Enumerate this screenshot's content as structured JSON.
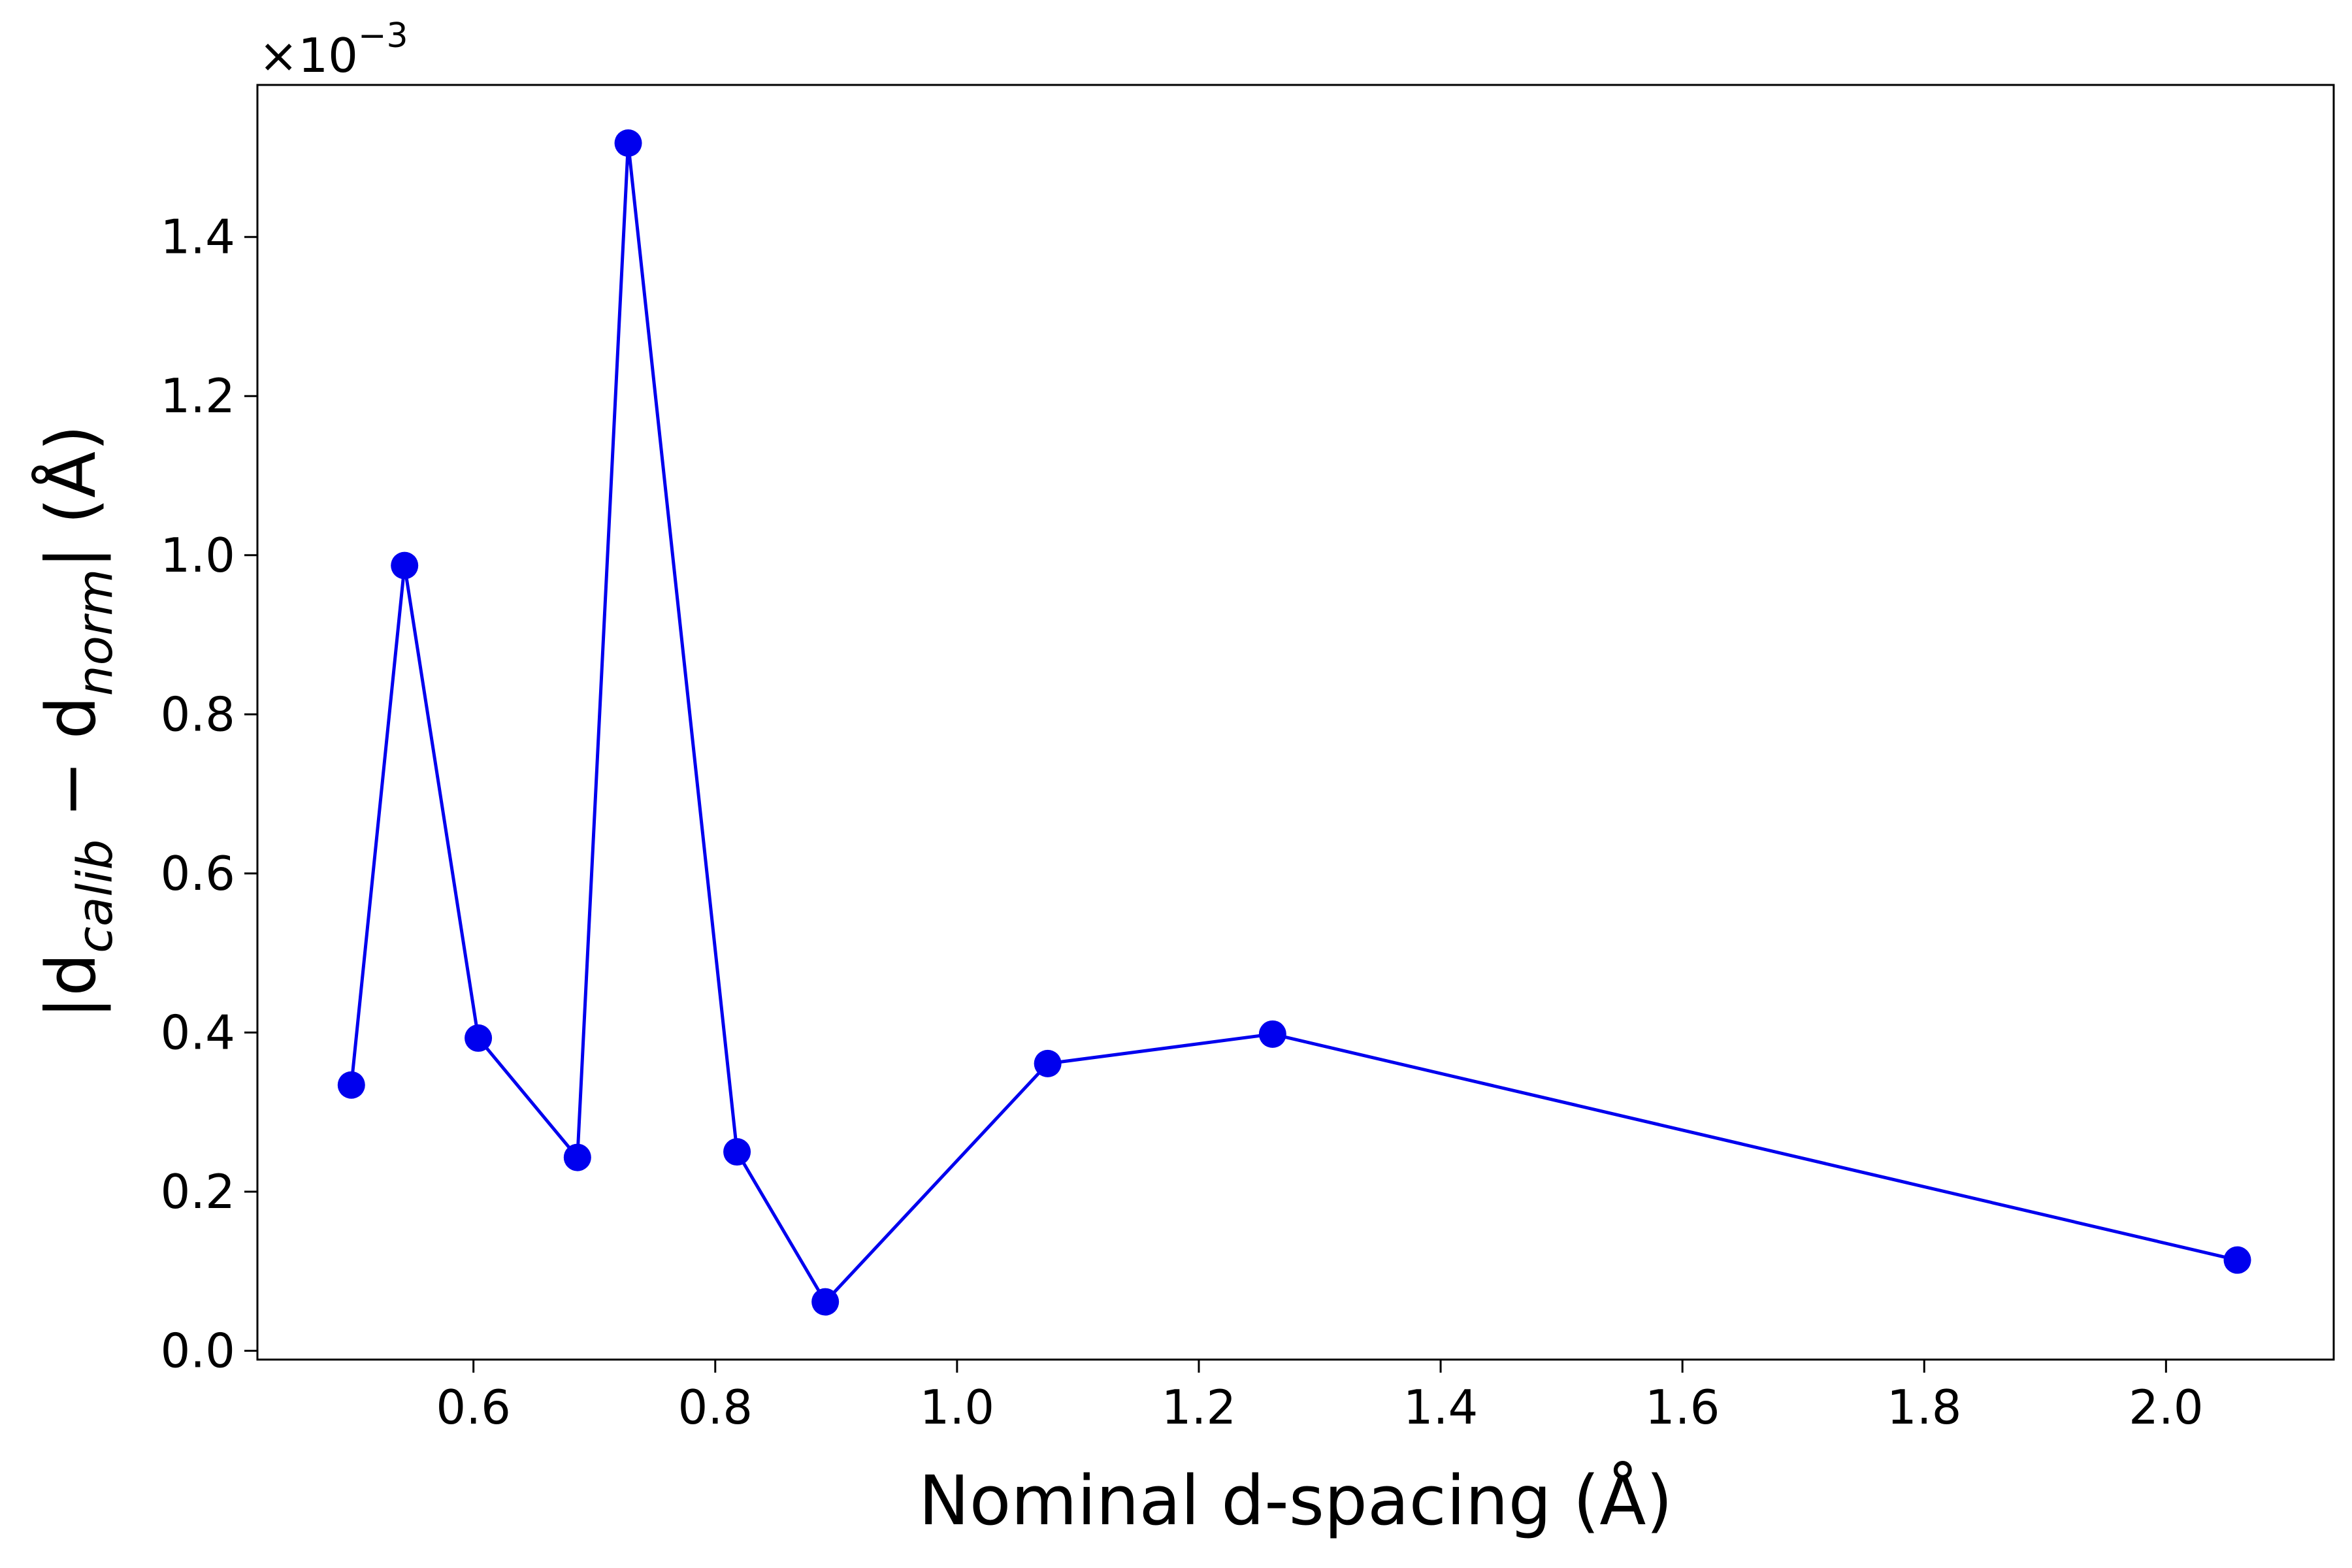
{
  "chart_data": {
    "type": "line",
    "title": "",
    "xlabel": "Nominal d-spacing (Å)",
    "ylabel": {
      "prefix": "|d",
      "sub1": "calib",
      "middle": " − d",
      "sub2": "norm",
      "suffix": "| (Å)"
    },
    "y_offset_text": {
      "base": "×10",
      "exponent": "−3"
    },
    "xlim": [
      0.4213,
      2.1387
    ],
    "ylim": [
      -1.11e-05,
      0.0015911
    ],
    "x_ticks": [
      0.6,
      0.8,
      1.0,
      1.2,
      1.4,
      1.6,
      1.8,
      2.0
    ],
    "x_tick_labels": [
      "0.6",
      "0.8",
      "1.0",
      "1.2",
      "1.4",
      "1.6",
      "1.8",
      "2.0"
    ],
    "y_ticks": [
      0.0,
      0.0002,
      0.0004,
      0.0006,
      0.0008,
      0.001,
      0.0012,
      0.0014
    ],
    "y_tick_labels": [
      "0.0",
      "0.2",
      "0.4",
      "0.6",
      "0.8",
      "1.0",
      "1.2",
      "1.4"
    ],
    "grid": false,
    "legend": "none",
    "series": [
      {
        "color": "#0000ee",
        "marker": "circle",
        "points": [
          [
            0.499,
            0.000334
          ],
          [
            0.543,
            0.000987
          ],
          [
            0.604,
            0.000393
          ],
          [
            0.686,
            0.000243
          ],
          [
            0.728,
            0.001518
          ],
          [
            0.818,
            0.00025
          ],
          [
            0.891,
            6.15e-05
          ],
          [
            1.075,
            0.000361
          ],
          [
            1.261,
            0.000398
          ],
          [
            2.059,
            0.000114
          ]
        ]
      }
    ]
  }
}
